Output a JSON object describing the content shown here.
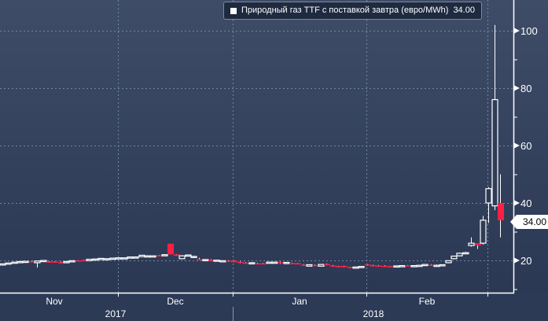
{
  "chart_data": {
    "type": "candlestick",
    "title": "",
    "legend": {
      "label": "Природный газ TTF с поставкой завтра (евро/MWh)",
      "last_value": "34.00",
      "placement": "top-right"
    },
    "last_price_tag": "34.00",
    "ylim": [
      7,
      108
    ],
    "y_ticks": [
      20,
      40,
      60,
      80,
      100
    ],
    "y_minor_ticks": [
      10,
      30,
      50,
      70,
      90
    ],
    "x_month_labels": [
      "Nov",
      "Dec",
      "Jan",
      "Feb"
    ],
    "x_year_labels": [
      "2017",
      "2018"
    ],
    "grid": true,
    "colors": {
      "up": "#ffffff",
      "down": "#ff1f45",
      "background_top": "#3f4c67",
      "background_bottom": "#2b3854"
    },
    "candles_ohlc": [
      [
        18.4,
        18.7,
        18.2,
        18.8
      ],
      [
        18.8,
        19.2,
        18.6,
        19.1
      ],
      [
        19.1,
        19.5,
        18.9,
        19.4
      ],
      [
        19.4,
        19.6,
        19.2,
        19.6
      ],
      [
        19.6,
        19.8,
        19.4,
        19.7
      ],
      [
        19.7,
        19.9,
        19.6,
        19.6
      ],
      [
        19.2,
        19.8,
        17.5,
        19.8
      ],
      [
        19.8,
        20.0,
        19.6,
        20.0
      ],
      [
        19.6,
        19.8,
        19.3,
        19.4
      ],
      [
        19.6,
        19.7,
        19.2,
        19.3
      ],
      [
        19.4,
        19.6,
        18.9,
        19.3
      ],
      [
        19.2,
        19.8,
        19.0,
        19.6
      ],
      [
        19.6,
        19.8,
        19.4,
        19.9
      ],
      [
        20.0,
        20.1,
        19.8,
        19.8
      ],
      [
        20.1,
        20.2,
        19.9,
        19.9
      ],
      [
        19.9,
        20.4,
        19.8,
        20.4
      ],
      [
        20.3,
        20.6,
        20.2,
        20.5
      ],
      [
        20.5,
        20.8,
        20.4,
        20.7
      ],
      [
        20.6,
        20.8,
        20.5,
        20.6
      ],
      [
        20.6,
        20.9,
        20.5,
        20.8
      ],
      [
        20.8,
        21.0,
        20.7,
        20.9
      ],
      [
        20.8,
        21.0,
        20.7,
        20.9
      ],
      [
        20.9,
        21.3,
        20.8,
        21.2
      ],
      [
        21.0,
        21.4,
        20.9,
        21.2
      ],
      [
        21.3,
        21.9,
        21.2,
        21.8
      ],
      [
        21.6,
        21.8,
        21.4,
        21.6
      ],
      [
        21.4,
        21.7,
        21.3,
        21.6
      ],
      [
        21.8,
        21.9,
        21.6,
        21.6
      ],
      [
        21.6,
        22.2,
        21.5,
        22.0
      ],
      [
        25.8,
        25.8,
        22.1,
        22.1
      ],
      [
        22.1,
        22.2,
        21.6,
        21.6
      ],
      [
        20.6,
        21.8,
        20.5,
        21.6
      ],
      [
        21.6,
        22.0,
        21.4,
        21.9
      ],
      [
        21.0,
        21.6,
        20.8,
        21.4
      ],
      [
        20.5,
        20.9,
        20.1,
        20.1
      ],
      [
        20.2,
        20.5,
        20.0,
        20.3
      ],
      [
        20.2,
        20.4,
        19.7,
        19.8
      ],
      [
        19.8,
        20.2,
        19.6,
        20.1
      ],
      [
        19.5,
        20.0,
        19.4,
        19.9
      ],
      [
        19.9,
        20.1,
        19.7,
        19.8
      ],
      [
        20.0,
        20.1,
        19.4,
        19.4
      ],
      [
        19.5,
        19.7,
        19.0,
        19.2
      ],
      [
        19.2,
        19.4,
        19.0,
        19.1
      ],
      [
        18.9,
        19.4,
        18.8,
        19.2
      ],
      [
        19.0,
        19.2,
        18.8,
        18.8
      ],
      [
        19.0,
        19.1,
        18.7,
        18.8
      ],
      [
        19.3,
        19.5,
        19.2,
        19.4
      ],
      [
        19.3,
        19.6,
        19.0,
        19.4
      ],
      [
        19.4,
        19.6,
        18.8,
        19.0
      ],
      [
        19.1,
        19.4,
        19.0,
        19.3
      ],
      [
        19.1,
        19.2,
        18.7,
        18.8
      ],
      [
        19.0,
        19.1,
        18.7,
        18.7
      ],
      [
        18.5,
        18.7,
        18.2,
        18.3
      ],
      [
        18.0,
        18.6,
        17.9,
        18.5
      ],
      [
        18.4,
        18.6,
        18.3,
        18.3
      ],
      [
        18.0,
        18.7,
        17.9,
        18.6
      ],
      [
        18.7,
        18.9,
        18.3,
        18.3
      ],
      [
        18.2,
        18.4,
        17.9,
        18.0
      ],
      [
        18.0,
        18.1,
        17.8,
        17.9
      ],
      [
        18.1,
        18.2,
        17.6,
        17.7
      ],
      [
        17.7,
        17.8,
        17.5,
        17.6
      ],
      [
        17.6,
        17.8,
        17.5,
        17.7
      ],
      [
        17.8,
        18.0,
        17.7,
        17.9
      ],
      [
        18.6,
        18.7,
        18.1,
        18.2
      ],
      [
        18.3,
        18.5,
        18.0,
        18.1
      ],
      [
        18.2,
        18.4,
        17.9,
        18.0
      ],
      [
        18.1,
        18.3,
        17.9,
        18.0
      ],
      [
        18.0,
        18.1,
        17.7,
        17.8
      ],
      [
        17.9,
        18.2,
        17.8,
        18.1
      ],
      [
        18.1,
        18.3,
        18.0,
        18.2
      ],
      [
        18.3,
        18.4,
        18.1,
        18.1
      ],
      [
        18.0,
        18.3,
        17.9,
        18.2
      ],
      [
        18.2,
        18.5,
        18.1,
        18.3
      ],
      [
        18.3,
        18.6,
        18.2,
        18.6
      ],
      [
        18.5,
        18.7,
        18.3,
        18.4
      ],
      [
        18.3,
        18.6,
        18.2,
        18.3
      ],
      [
        18.2,
        18.6,
        18.1,
        18.5
      ],
      [
        19.2,
        20.0,
        19.0,
        19.9
      ],
      [
        20.6,
        21.6,
        20.4,
        21.5
      ],
      [
        21.6,
        22.7,
        21.4,
        22.5
      ],
      [
        22.6,
        23.0,
        22.4,
        22.7
      ],
      [
        25.2,
        28.0,
        24.8,
        26.0
      ],
      [
        26.0,
        26.0,
        24.0,
        25.2
      ],
      [
        26.0,
        35.5,
        25.5,
        34.0
      ],
      [
        40.0,
        45.5,
        33.0,
        45.0
      ],
      [
        39.0,
        102.0,
        37.5,
        76.0
      ],
      [
        40.0,
        50.0,
        28.0,
        34.0
      ]
    ]
  }
}
